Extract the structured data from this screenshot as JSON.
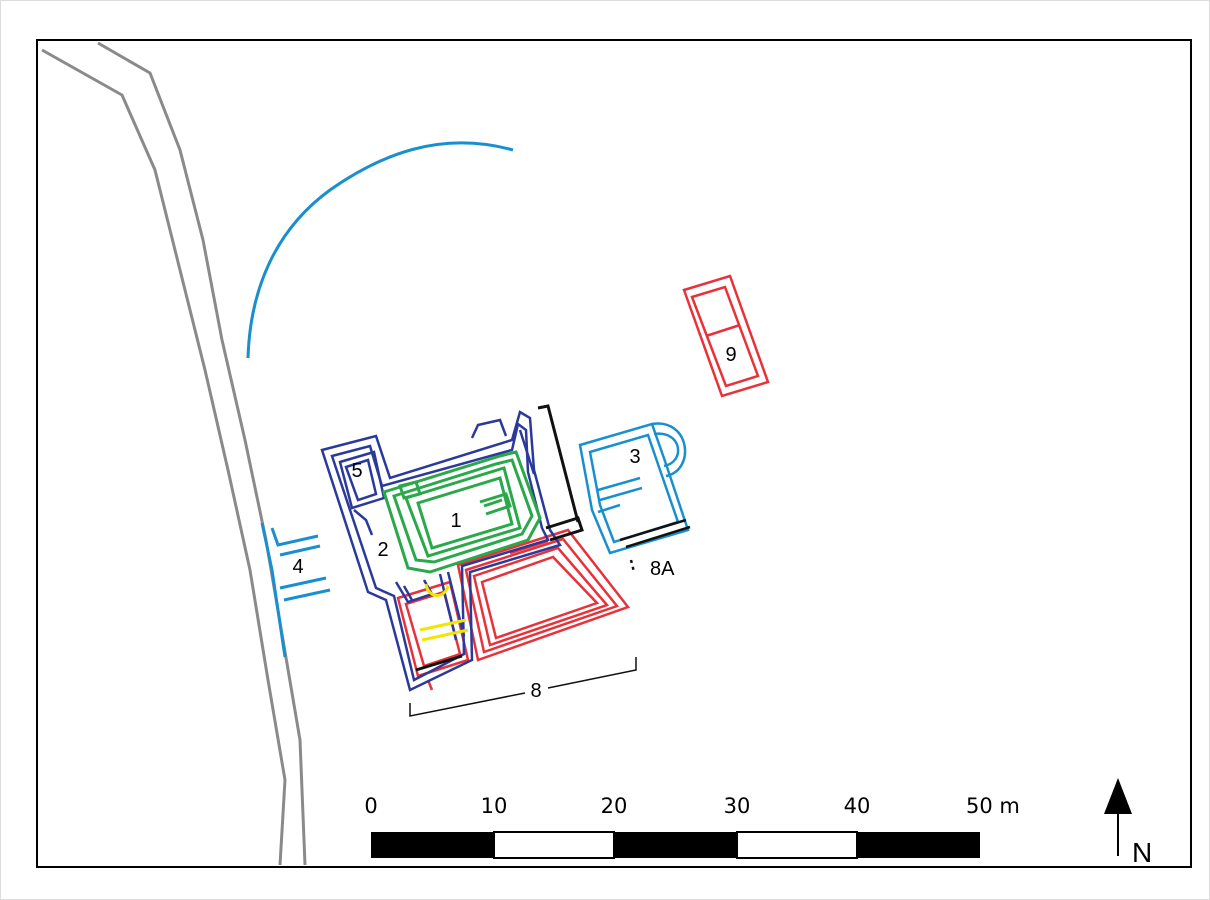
{
  "colors": {
    "phase_green": "#2aa84a",
    "phase_navy": "#2b3a9a",
    "phase_blue": "#1a8fd0",
    "phase_red": "#e8323a",
    "phase_yellow": "#f2e600",
    "phase_black": "#111111",
    "road": "#8a8a8a"
  },
  "features": {
    "label_1": "1",
    "label_2": "2",
    "label_3": "3",
    "label_4": "4",
    "label_5": "5",
    "label_8": "8",
    "label_8a": "8A",
    "label_9": "9"
  },
  "scale_bar": {
    "ticks": [
      "0",
      "10",
      "20",
      "30",
      "40",
      "50 m"
    ]
  },
  "north_arrow": {
    "label": "N",
    "icon": "north-arrow-icon"
  }
}
